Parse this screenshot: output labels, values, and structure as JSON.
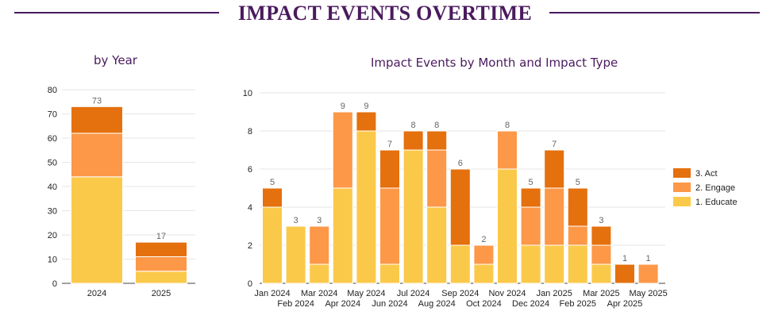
{
  "header": {
    "title": "IMPACT EVENTS OVERTIME"
  },
  "colors": {
    "act": "#e5700e",
    "engage": "#fc9848",
    "educate": "#fbc94a",
    "title": "#4a1a5e",
    "grid": "#e6e6e6"
  },
  "chart_data": [
    {
      "type": "bar",
      "stacked": true,
      "title": "by Year",
      "categories": [
        "2024",
        "2025"
      ],
      "series": [
        {
          "name": "1. Educate",
          "values": [
            44,
            5
          ]
        },
        {
          "name": "2. Engage",
          "values": [
            18,
            6
          ]
        },
        {
          "name": "3. Act",
          "values": [
            11,
            6
          ]
        }
      ],
      "totals": [
        73,
        17
      ],
      "yticks": [
        "0",
        "10",
        "20",
        "30",
        "40",
        "50",
        "60",
        "70",
        "80"
      ],
      "ylim": [
        0,
        80
      ],
      "grid": true
    },
    {
      "type": "bar",
      "stacked": true,
      "title": "Impact Events by Month and Impact Type",
      "categories": [
        "Jan 2024",
        "Feb 2024",
        "Mar 2024",
        "Apr 2024",
        "May 2024",
        "Jun 2024",
        "Jul 2024",
        "Aug 2024",
        "Sep 2024",
        "Oct 2024",
        "Nov 2024",
        "Dec 2024",
        "Jan 2025",
        "Feb 2025",
        "Mar 2025",
        "Apr 2025",
        "May 2025"
      ],
      "series": [
        {
          "name": "1. Educate",
          "values": [
            4,
            3,
            1,
            5,
            8,
            1,
            7,
            4,
            2,
            1,
            6,
            2,
            2,
            2,
            1,
            0,
            0
          ]
        },
        {
          "name": "2. Engage",
          "values": [
            0,
            0,
            2,
            4,
            0,
            4,
            0,
            3,
            0,
            1,
            2,
            2,
            3,
            1,
            1,
            0,
            1
          ]
        },
        {
          "name": "3. Act",
          "values": [
            1,
            0,
            0,
            0,
            1,
            2,
            1,
            1,
            4,
            0,
            0,
            1,
            2,
            2,
            1,
            1,
            0
          ]
        }
      ],
      "totals": [
        5,
        3,
        3,
        9,
        9,
        7,
        8,
        8,
        6,
        2,
        8,
        5,
        7,
        5,
        3,
        1,
        1
      ],
      "yticks": [
        "0",
        "2",
        "4",
        "6",
        "8",
        "10"
      ],
      "ylim": [
        0,
        10
      ],
      "grid": true,
      "legend": [
        "3. Act",
        "2. Engage",
        "1. Educate"
      ],
      "legend_position": "right"
    }
  ]
}
